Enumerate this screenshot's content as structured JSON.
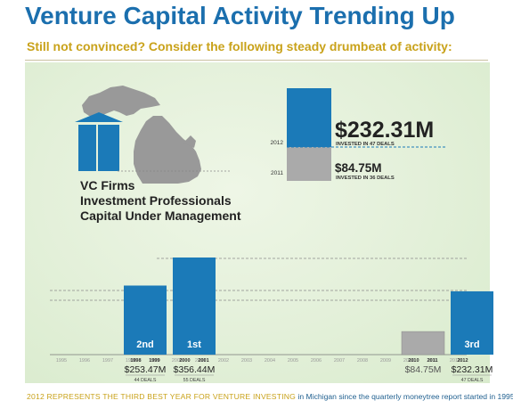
{
  "title": "Venture Capital Activity Trending Up",
  "subtitle": "Still not convinced? Consider the following steady drumbeat of activity:",
  "labels": [
    "VC Firms",
    "Investment Professionals",
    "Capital Under Management"
  ],
  "footer": {
    "highlight": "2012 REPRESENTS THE THIRD BEST YEAR FOR VENTURE INVESTING",
    "rest": " in Michigan since the quarterly moneytree report started in 1995."
  },
  "colors": {
    "title": "#1b6fae",
    "accent": "#c9a21a",
    "bar": "#1b7ab8",
    "gray": "#aaaaaa",
    "bg": "#e3f0d9"
  },
  "chart_data": [
    {
      "type": "bar",
      "categories": [
        "2011",
        "2012"
      ],
      "values": [
        84.75,
        232.31
      ],
      "value_labels": [
        "$84.75M",
        "$232.31M"
      ],
      "sub_labels": [
        "INVESTED IN 36 DEALS",
        "INVESTED IN 47 DEALS"
      ],
      "highlight": "2012"
    },
    {
      "type": "bar",
      "categories": [
        "1995",
        "1996",
        "1997",
        "1998",
        "1999",
        "2000",
        "2001",
        "2002",
        "2003",
        "2004",
        "2005",
        "2006",
        "2007",
        "2008",
        "2009",
        "2010",
        "2011",
        "2012"
      ],
      "bars": [
        {
          "x": "1999",
          "value": 253.47,
          "rank": "2nd",
          "value_label": "$253.47M",
          "deals": "44 DEALS",
          "years_label": [
            "1998",
            "1999"
          ],
          "color": "blue"
        },
        {
          "x": "2000",
          "value": 356.44,
          "rank": "1st",
          "value_label": "$356.44M",
          "deals": "55 DEALS",
          "years_label": [
            "2000",
            "2001"
          ],
          "color": "blue"
        },
        {
          "x": "2011",
          "value": 84.75,
          "rank": "",
          "value_label": "$84.75M",
          "deals": "",
          "years_label": [
            "2010",
            "2011"
          ],
          "color": "gray"
        },
        {
          "x": "2012",
          "value": 232.31,
          "rank": "3rd",
          "value_label": "$232.31M",
          "deals": "47 DEALS",
          "years_label": [
            "2012",
            ""
          ],
          "color": "blue"
        }
      ]
    }
  ]
}
